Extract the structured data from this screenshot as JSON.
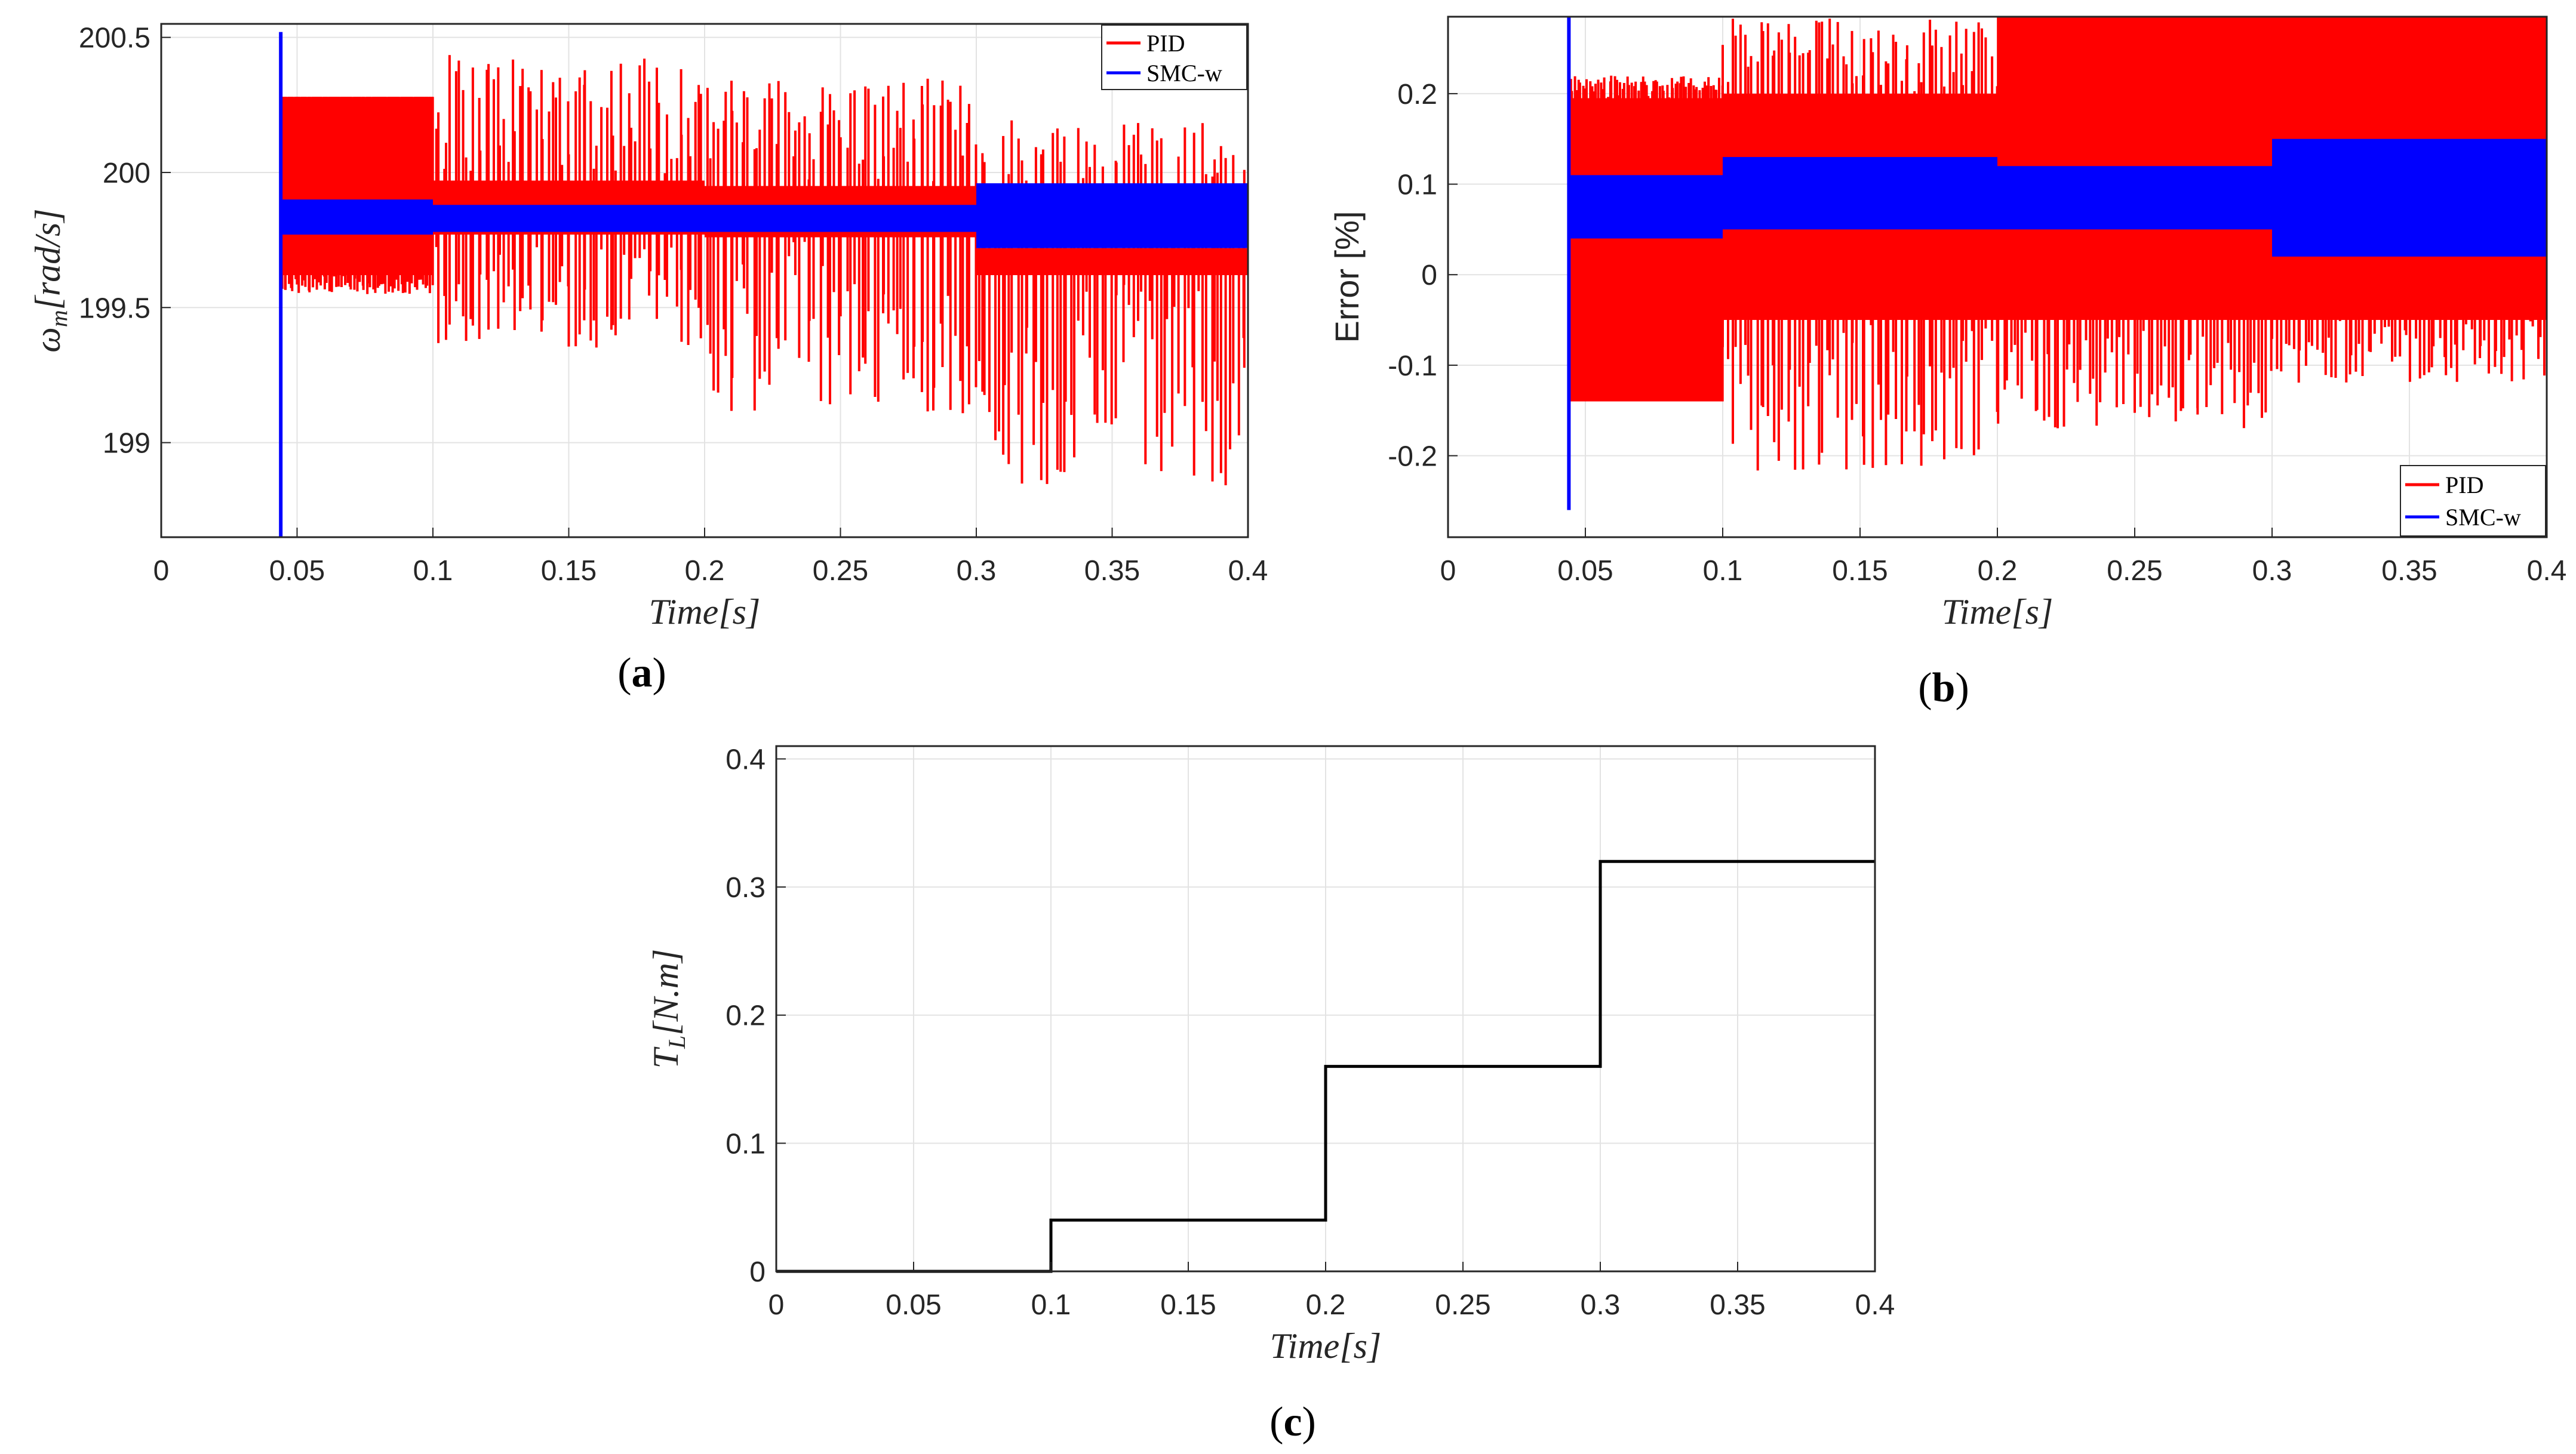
{
  "chart_data": [
    {
      "type": "line",
      "caption": "(a)",
      "caption_prefix": "(",
      "caption_letter": "a",
      "caption_suffix": ")",
      "ylabel": "ωm[rad/s]",
      "ylabel_main": "ω",
      "ylabel_sub": "m",
      "ylabel_rest": "[rad/s]",
      "xlabel": "Time[s]",
      "xlim": [
        0,
        0.4
      ],
      "ylim": [
        198.65,
        200.55
      ],
      "xticks": [
        0,
        0.05,
        0.1,
        0.15,
        0.2,
        0.25,
        0.3,
        0.35,
        0.4
      ],
      "xtick_labels": [
        "0",
        "0.05",
        "0.1",
        "0.15",
        "0.2",
        "0.25",
        "0.3",
        "0.35",
        "0.4"
      ],
      "yticks": [
        199,
        199.5,
        200,
        200.5
      ],
      "ytick_labels": [
        "199",
        "199.5",
        "200",
        "200.5"
      ],
      "legend": [
        "PID",
        "SMC-w"
      ],
      "legend_position": "top-right",
      "series": [
        {
          "name": "PID",
          "color": "#ff0000",
          "start": 0.044,
          "segments": [
            {
              "t0": 0.044,
              "t1": 0.1,
              "upper": 200.28,
              "lower": 199.62,
              "spike_max": 200.28,
              "spike_min": 199.55
            },
            {
              "t0": 0.1,
              "t1": 0.2,
              "upper": 199.97,
              "lower": 199.77,
              "spike_max": 200.45,
              "spike_min": 199.35
            },
            {
              "t0": 0.2,
              "t1": 0.3,
              "upper": 199.95,
              "lower": 199.76,
              "spike_max": 200.35,
              "spike_min": 199.1
            },
            {
              "t0": 0.3,
              "t1": 0.4,
              "upper": 199.72,
              "lower": 199.62,
              "spike_max": 200.22,
              "spike_min": 198.83
            }
          ]
        },
        {
          "name": "SMC-w",
          "color": "#0000ff",
          "start": 0.044,
          "initial_spike": [
            198.65,
            200.52
          ],
          "segments": [
            {
              "t0": 0.044,
              "t1": 0.1,
              "upper": 199.9,
              "lower": 199.77
            },
            {
              "t0": 0.1,
              "t1": 0.2,
              "upper": 199.88,
              "lower": 199.78
            },
            {
              "t0": 0.2,
              "t1": 0.3,
              "upper": 199.88,
              "lower": 199.78
            },
            {
              "t0": 0.3,
              "t1": 0.4,
              "upper": 199.96,
              "lower": 199.72
            }
          ]
        }
      ]
    },
    {
      "type": "line",
      "caption": "(b)",
      "caption_prefix": "(",
      "caption_letter": "b",
      "caption_suffix": ")",
      "ylabel": "Error [%]",
      "xlabel": "Time[s]",
      "xlim": [
        0,
        0.4
      ],
      "ylim": [
        -0.29,
        0.285
      ],
      "xticks": [
        0,
        0.05,
        0.1,
        0.15,
        0.2,
        0.25,
        0.3,
        0.35,
        0.4
      ],
      "xtick_labels": [
        "0",
        "0.05",
        "0.1",
        "0.15",
        "0.2",
        "0.25",
        "0.3",
        "0.35",
        "0.4"
      ],
      "yticks": [
        -0.2,
        -0.1,
        0,
        0.1,
        0.2
      ],
      "ytick_labels": [
        "-0.2",
        "-0.1",
        "0",
        "0.1",
        "0.2"
      ],
      "legend": [
        "PID",
        "SMC-w"
      ],
      "legend_position": "bottom-right",
      "series": [
        {
          "name": "PID",
          "color": "#ff0000",
          "start": 0.044,
          "segments": [
            {
              "t0": 0.044,
              "t1": 0.1,
              "upper": 0.195,
              "lower": -0.14,
              "spike_max": 0.22,
              "spike_min": -0.14
            },
            {
              "t0": 0.1,
              "t1": 0.2,
              "upper": 0.2,
              "lower": -0.05,
              "spike_max": 0.285,
              "spike_min": -0.22
            },
            {
              "t0": 0.2,
              "t1": 0.3,
              "upper": 0.285,
              "lower": -0.05,
              "spike_max": 0.285,
              "spike_min": -0.17
            },
            {
              "t0": 0.3,
              "t1": 0.4,
              "upper": 0.285,
              "lower": -0.05,
              "spike_max": 0.285,
              "spike_min": -0.12
            }
          ]
        },
        {
          "name": "SMC-w",
          "color": "#0000ff",
          "start": 0.044,
          "initial_spike": [
            -0.26,
            0.285
          ],
          "segments": [
            {
              "t0": 0.044,
              "t1": 0.1,
              "upper": 0.11,
              "lower": 0.04
            },
            {
              "t0": 0.1,
              "t1": 0.2,
              "upper": 0.13,
              "lower": 0.05
            },
            {
              "t0": 0.2,
              "t1": 0.3,
              "upper": 0.12,
              "lower": 0.05
            },
            {
              "t0": 0.3,
              "t1": 0.4,
              "upper": 0.15,
              "lower": 0.02
            }
          ]
        }
      ]
    },
    {
      "type": "line",
      "caption": "(c)",
      "caption_prefix": "(",
      "caption_letter": "c",
      "caption_suffix": ")",
      "ylabel": "TL[N.m]",
      "ylabel_main": "T",
      "ylabel_sub": "L",
      "ylabel_rest": "[N.m]",
      "xlabel": "Time[s]",
      "xlim": [
        0,
        0.4
      ],
      "ylim": [
        0,
        0.41
      ],
      "xticks": [
        0,
        0.05,
        0.1,
        0.15,
        0.2,
        0.25,
        0.3,
        0.35,
        0.4
      ],
      "xtick_labels": [
        "0",
        "0.05",
        "0.1",
        "0.15",
        "0.2",
        "0.25",
        "0.3",
        "0.35",
        "0.4"
      ],
      "yticks": [
        0,
        0.1,
        0.2,
        0.3,
        0.4
      ],
      "ytick_labels": [
        "0",
        "0.1",
        "0.2",
        "0.3",
        "0.4"
      ],
      "series": [
        {
          "name": "TL",
          "color": "#000000",
          "x": [
            0,
            0.1,
            0.1,
            0.2,
            0.2,
            0.3,
            0.3,
            0.4
          ],
          "y": [
            0,
            0,
            0.04,
            0.04,
            0.16,
            0.16,
            0.32,
            0.32
          ]
        }
      ]
    }
  ]
}
